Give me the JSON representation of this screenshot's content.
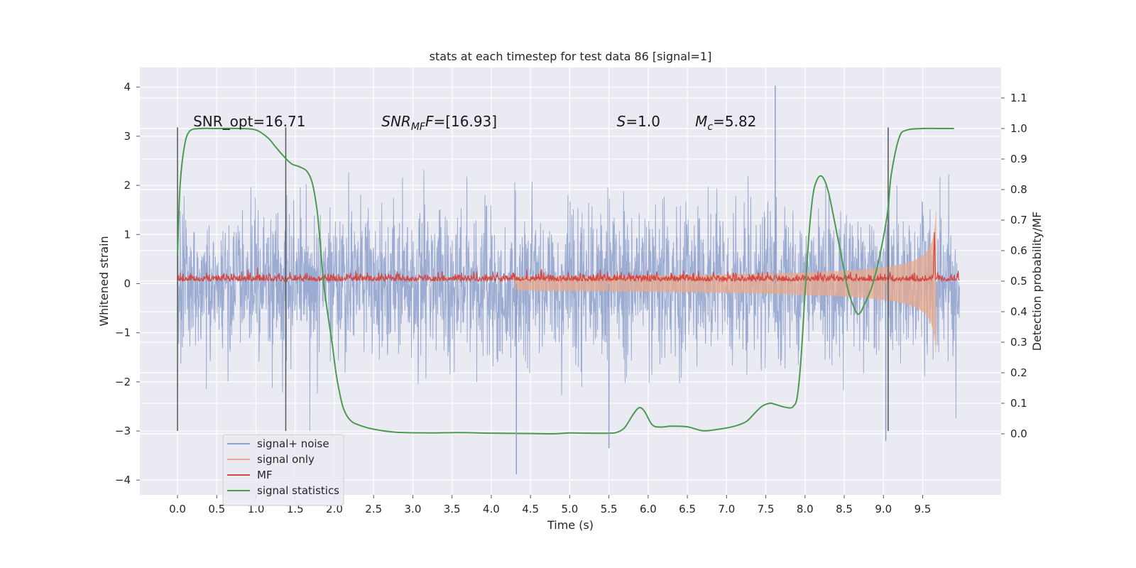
{
  "chart_data": {
    "type": "line",
    "title": "stats at each timestep for test data 86 [signal=1]",
    "xlabel": "Time (s)",
    "ylabel": "Whitened strain",
    "ylabel_right": "Detection probability/MF",
    "xlim": [
      -0.48,
      10.5
    ],
    "ylim": [
      -4.3,
      4.4
    ],
    "ylim_right": [
      -0.2,
      1.2
    ],
    "x_ticks": [
      "0.0",
      "0.5",
      "1.0",
      "1.5",
      "2.0",
      "2.5",
      "3.0",
      "3.5",
      "4.0",
      "4.5",
      "5.0",
      "5.5",
      "6.0",
      "6.5",
      "7.0",
      "7.5",
      "8.0",
      "8.5",
      "9.0",
      "9.5"
    ],
    "y_ticks": [
      "−4",
      "−3",
      "−2",
      "−1",
      "0",
      "1",
      "2",
      "3",
      "4"
    ],
    "y_ticks_right": [
      "0.0",
      "0.1",
      "0.2",
      "0.3",
      "0.4",
      "0.5",
      "0.6",
      "0.7",
      "0.8",
      "0.9",
      "1.0",
      "1.1"
    ],
    "grid": true,
    "legend_position": "bottom-left",
    "annotations": {
      "snr_opt": "SNR_opt=16.71",
      "snr_mf_base": "SNR",
      "snr_mf_sub": "MF",
      "snr_mf_value": "=[16.93]",
      "s_label": "S",
      "s_value": "=1.0",
      "mc_base": "M",
      "mc_sub": "c",
      "mc_value": "=5.82"
    },
    "vertical_markers": [
      0.0,
      1.38,
      9.06
    ],
    "series": [
      {
        "name": "signal+ noise",
        "color": "#8da0cb",
        "kind": "noise",
        "x_range": [
          0.0,
          9.97
        ],
        "std": 0.75,
        "spikes": [
          [
            7.62,
            4.03
          ],
          [
            4.32,
            -3.88
          ],
          [
            5.5,
            -3.35
          ],
          [
            9.03,
            -3.2
          ]
        ]
      },
      {
        "name": "signal only",
        "color": "#e8a98c",
        "kind": "chirp",
        "x_range": [
          4.3,
          9.67
        ],
        "peak_amplitude": 1.6
      },
      {
        "name": "MF",
        "color": "#d44842",
        "kind": "mf",
        "x_range": [
          0.0,
          9.97
        ],
        "baseline_right": 0.5,
        "peak": [
          9.65,
          0.65
        ]
      },
      {
        "name": "signal statistics",
        "color": "#4c9a52",
        "kind": "probability",
        "x": [
          0.0,
          0.03,
          0.08,
          0.15,
          0.3,
          0.5,
          0.8,
          1.0,
          1.15,
          1.25,
          1.35,
          1.45,
          1.55,
          1.65,
          1.72,
          1.78,
          1.82,
          1.86,
          1.9,
          1.94,
          1.98,
          2.02,
          2.07,
          2.12,
          2.2,
          2.3,
          2.5,
          2.8,
          3.2,
          3.6,
          4.0,
          4.5,
          4.8,
          5.0,
          5.2,
          5.5,
          5.6,
          5.7,
          5.8,
          5.88,
          5.95,
          6.05,
          6.15,
          6.3,
          6.5,
          6.7,
          6.9,
          7.1,
          7.25,
          7.35,
          7.45,
          7.55,
          7.6,
          7.7,
          7.8,
          7.85,
          7.9,
          7.95,
          8.0,
          8.05,
          8.1,
          8.15,
          8.2,
          8.25,
          8.3,
          8.35,
          8.45,
          8.55,
          8.65,
          8.7,
          8.75,
          8.85,
          8.95,
          9.05,
          9.1,
          9.2,
          9.3,
          9.5,
          9.7,
          9.9
        ],
        "y": [
          0.58,
          0.8,
          0.93,
          0.99,
          1.0,
          1.0,
          1.0,
          0.995,
          0.97,
          0.94,
          0.91,
          0.885,
          0.875,
          0.86,
          0.82,
          0.73,
          0.62,
          0.5,
          0.42,
          0.35,
          0.28,
          0.2,
          0.13,
          0.08,
          0.045,
          0.03,
          0.015,
          0.005,
          0.003,
          0.004,
          0.002,
          0.001,
          0.0,
          0.003,
          0.002,
          0.002,
          0.005,
          0.02,
          0.06,
          0.085,
          0.075,
          0.03,
          0.022,
          0.025,
          0.023,
          0.01,
          0.015,
          0.025,
          0.04,
          0.065,
          0.09,
          0.1,
          0.098,
          0.09,
          0.085,
          0.09,
          0.12,
          0.25,
          0.46,
          0.65,
          0.78,
          0.83,
          0.845,
          0.83,
          0.79,
          0.73,
          0.6,
          0.47,
          0.4,
          0.395,
          0.42,
          0.48,
          0.58,
          0.72,
          0.85,
          0.97,
          0.995,
          1.0,
          1.0,
          1.0
        ]
      }
    ]
  }
}
